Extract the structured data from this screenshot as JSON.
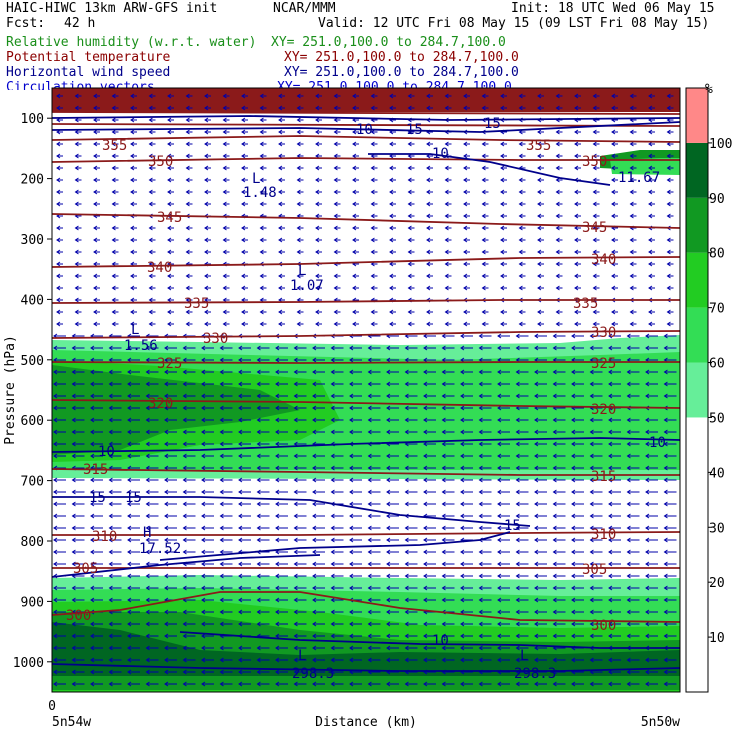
{
  "header": {
    "model": "HAIC-HIWC 13km ARW-GFS init",
    "institution": "NCAR/MMM",
    "init": "Init: 18 UTC Wed 06 May 15",
    "fcst_label": "Fcst:",
    "fcst_value": "42 h",
    "valid": "Valid: 12 UTC Fri 08 May 15 (09 LST Fri 08 May 15)"
  },
  "fields": [
    {
      "name": "Relative humidity (w.r.t. water)",
      "xy": "XY= 251.0,100.0 to 284.7,100.0",
      "color": "#1a8f1a"
    },
    {
      "name": "Potential temperature",
      "xy": "XY= 251.0,100.0 to 284.7,100.0",
      "color": "#8b0000"
    },
    {
      "name": "Horizontal wind speed",
      "xy": "XY= 251.0,100.0 to 284.7,100.0",
      "color": "#00008b"
    },
    {
      "name": "Circulation vectors",
      "xy": "XY= 251.0,100.0 to 284.7,100.0",
      "color": "#0000cd"
    }
  ],
  "chart_data": {
    "type": "heatmap",
    "xlabel": "Distance (km)",
    "ylabel": "Pressure (hPa)",
    "x_start_tick": "0",
    "x_left_label": "5n54w",
    "x_right_label": "5n50w",
    "y_ticks": [
      "100",
      "200",
      "300",
      "400",
      "500",
      "600",
      "700",
      "800",
      "900",
      "1000"
    ],
    "y_range_hPa": [
      50,
      1050
    ],
    "colorbar": {
      "unit": "%",
      "ticks": [
        "10",
        "20",
        "30",
        "40",
        "50",
        "60",
        "70",
        "80",
        "90",
        "100"
      ],
      "bands": [
        {
          "min": 50,
          "max": 60,
          "color": "#66ee99"
        },
        {
          "min": 60,
          "max": 70,
          "color": "#33dd55"
        },
        {
          "min": 70,
          "max": 80,
          "color": "#22cc22"
        },
        {
          "min": 80,
          "max": 90,
          "color": "#119922"
        },
        {
          "min": 90,
          "max": 100,
          "color": "#006622"
        },
        {
          "min": 100,
          "max": 110,
          "color": "#ff8888"
        }
      ]
    },
    "theta_labels": [
      "355",
      "350",
      "345",
      "340",
      "335",
      "330",
      "325",
      "320",
      "315",
      "310",
      "305",
      "300"
    ],
    "wind_labels": [
      "10",
      "15",
      "10",
      "15",
      "15",
      "10",
      "15",
      "15",
      "10",
      "10"
    ],
    "extrema_labels": [
      {
        "kind": "L",
        "value": "1.48"
      },
      {
        "kind": "L",
        "value": "1.07"
      },
      {
        "kind": "L",
        "value": "1.56"
      },
      {
        "kind": "H",
        "value": "17.52"
      },
      {
        "kind": "L",
        "value": "298.3"
      },
      {
        "kind": "L",
        "value": "298.3"
      },
      {
        "kind": "",
        "value": "11.67"
      }
    ]
  }
}
